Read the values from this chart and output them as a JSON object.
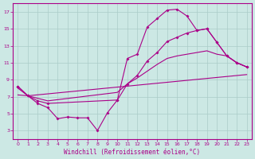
{
  "xlabel": "Windchill (Refroidissement éolien,°C)",
  "bg_color": "#cce8e4",
  "grid_color": "#aaccc8",
  "line_color": "#aa0088",
  "x_min": 0,
  "x_max": 23,
  "y_min": 2,
  "y_max": 18,
  "yticks": [
    3,
    5,
    7,
    9,
    11,
    13,
    15,
    17
  ],
  "xticks": [
    0,
    1,
    2,
    3,
    4,
    5,
    6,
    7,
    8,
    9,
    10,
    11,
    12,
    13,
    14,
    15,
    16,
    17,
    18,
    19,
    20,
    21,
    22,
    23
  ],
  "line1_x": [
    0,
    1,
    2,
    3,
    4,
    5,
    6,
    7,
    8,
    9,
    10,
    11,
    12,
    13,
    14,
    15,
    16,
    17,
    18,
    19,
    20,
    21,
    22,
    23
  ],
  "line1_y": [
    8.2,
    7.1,
    6.2,
    5.7,
    4.4,
    4.6,
    4.5,
    4.5,
    3.0,
    5.1,
    6.6,
    11.5,
    12.0,
    15.2,
    16.2,
    17.2,
    17.3,
    16.5,
    14.8,
    15.0,
    13.4,
    11.8,
    11.0,
    10.5
  ],
  "line2_x": [
    0,
    1,
    2,
    3,
    10,
    11,
    12,
    13,
    14,
    15,
    16,
    17,
    18,
    19,
    20,
    21,
    22,
    23
  ],
  "line2_y": [
    8.2,
    7.1,
    6.5,
    6.2,
    6.6,
    8.5,
    9.5,
    11.2,
    12.2,
    13.5,
    14.0,
    14.5,
    14.8,
    15.0,
    13.4,
    11.8,
    11.0,
    10.5
  ],
  "line3_x": [
    0,
    1,
    23
  ],
  "line3_y": [
    7.2,
    7.1,
    9.6
  ],
  "line4_x": [
    0,
    1,
    2,
    3,
    10,
    11,
    12,
    13,
    14,
    15,
    16,
    17,
    18,
    19,
    20,
    21,
    22,
    23
  ],
  "line4_y": [
    8.0,
    7.1,
    6.8,
    6.5,
    7.5,
    8.5,
    9.2,
    10.0,
    10.8,
    11.5,
    11.8,
    12.0,
    12.2,
    12.4,
    12.0,
    11.8,
    11.0,
    10.5
  ]
}
